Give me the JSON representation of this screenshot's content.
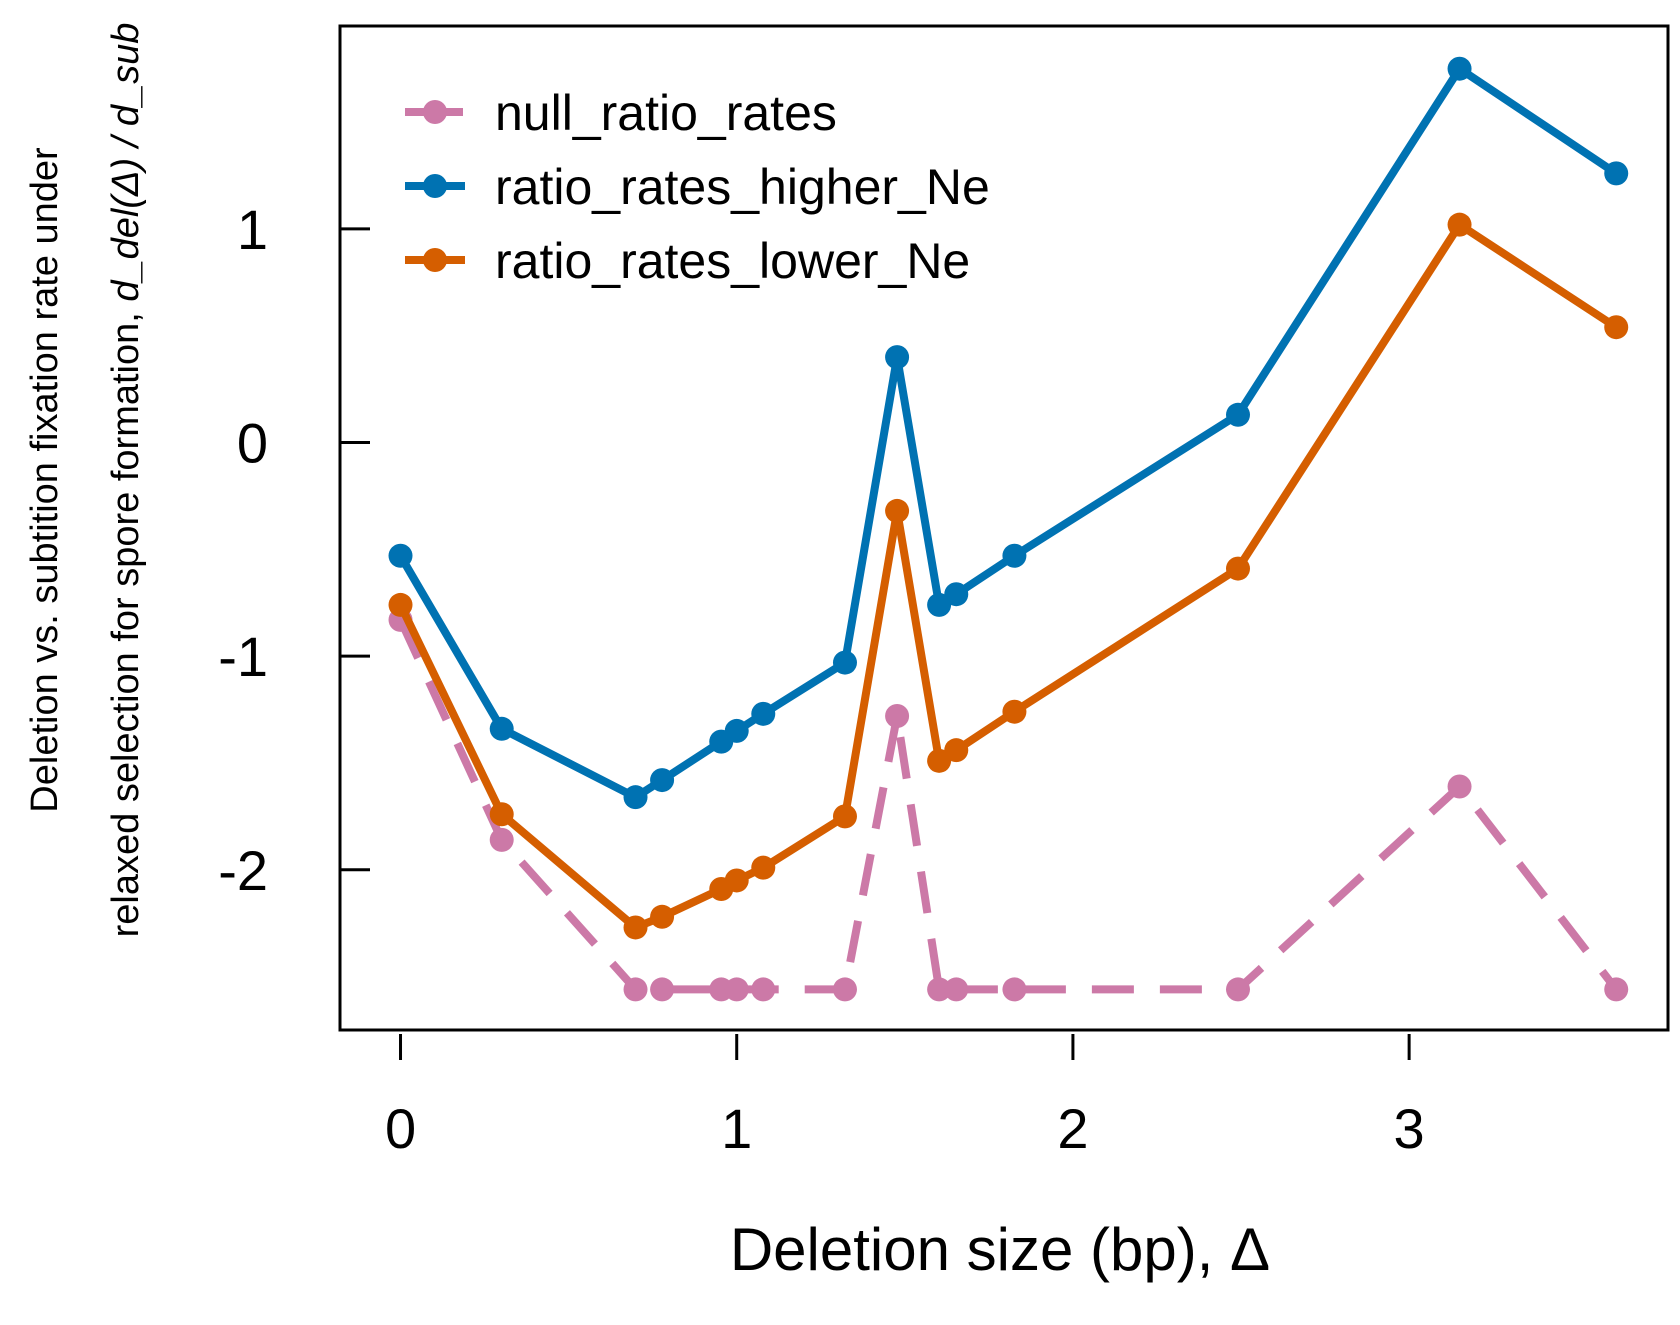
{
  "chart_data": {
    "type": "line",
    "xlabel": "Deletion size (bp), Δ",
    "ylabel_line1": "Deletion vs. subtition fixation rate under",
    "ylabel_line2_text": "relaxed selection for spore formation, ",
    "ylabel_line2_math": "d_del(Δ) / d_sub",
    "xlim": [
      -0.18,
      3.77
    ],
    "ylim": [
      -2.75,
      1.95
    ],
    "x_ticks": [
      0,
      1,
      2,
      3
    ],
    "x_tick_labels": [
      "0",
      "1",
      "2",
      "3"
    ],
    "y_ticks": [
      1,
      0,
      -1,
      -2
    ],
    "y_tick_labels": [
      "1",
      "0",
      "-1",
      "-2"
    ],
    "grid": false,
    "legend_position": "top-left",
    "x": [
      0,
      0.301,
      0.699,
      0.778,
      0.954,
      1.0,
      1.079,
      1.322,
      1.477,
      1.602,
      1.653,
      1.826,
      2.491,
      3.15,
      3.616
    ],
    "series": [
      {
        "name": "null_ratio_rates",
        "color": "#CC79A7",
        "style": "dashed",
        "values": [
          -0.83,
          -1.86,
          -2.56,
          -2.56,
          -2.56,
          -2.56,
          -2.56,
          -2.56,
          -1.28,
          -2.56,
          -2.56,
          -2.56,
          -2.56,
          -1.61,
          -2.56
        ]
      },
      {
        "name": "ratio_rates_higher_Ne",
        "color": "#0072B2",
        "style": "solid",
        "values": [
          -0.53,
          -1.34,
          -1.66,
          -1.58,
          -1.4,
          -1.35,
          -1.27,
          -1.03,
          0.4,
          -0.76,
          -0.71,
          -0.53,
          0.13,
          1.75,
          1.26
        ]
      },
      {
        "name": "ratio_rates_lower_Ne",
        "color": "#D55E00",
        "style": "solid",
        "values": [
          -0.76,
          -1.74,
          -2.27,
          -2.22,
          -2.09,
          -2.05,
          -1.99,
          -1.75,
          -0.32,
          -1.49,
          -1.44,
          -1.26,
          -0.59,
          1.02,
          0.54
        ]
      }
    ]
  }
}
